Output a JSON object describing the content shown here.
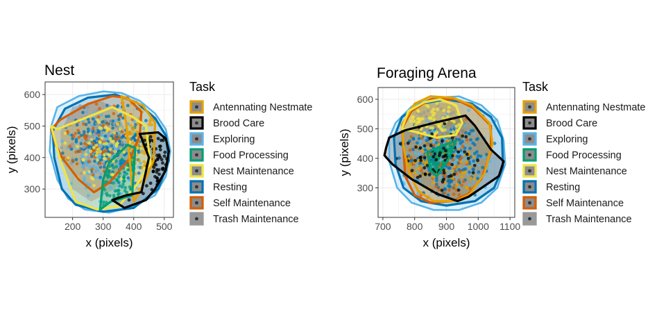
{
  "legend_title": "Task",
  "tasks": [
    {
      "name": "Antennating Nestmate",
      "color": "#E69F00"
    },
    {
      "name": "Brood Care",
      "color": "#000000"
    },
    {
      "name": "Exploring",
      "color": "#56B4E9"
    },
    {
      "name": "Food Processing",
      "color": "#009E73"
    },
    {
      "name": "Nest Maintenance",
      "color": "#F0E442"
    },
    {
      "name": "Resting",
      "color": "#0072B2"
    },
    {
      "name": "Self Maintenance",
      "color": "#D55E00"
    },
    {
      "name": "Trash Maintenance",
      "color": "#999999"
    }
  ],
  "chart_data": [
    {
      "type": "scatter",
      "title": "Nest",
      "xlabel": "x (pixels)",
      "ylabel": "y (pixels)",
      "xlim": [
        110,
        530
      ],
      "ylim": [
        210,
        640
      ],
      "xticks": [
        200,
        300,
        400,
        500
      ],
      "yticks": [
        300,
        400,
        500,
        600
      ],
      "grid": true,
      "legend_position": "right",
      "hulls": {
        "Exploring": [
          [
            130,
            500
          ],
          [
            150,
            560
          ],
          [
            220,
            595
          ],
          [
            300,
            610
          ],
          [
            360,
            605
          ],
          [
            420,
            580
          ],
          [
            470,
            540
          ],
          [
            505,
            490
          ],
          [
            520,
            420
          ],
          [
            505,
            340
          ],
          [
            470,
            280
          ],
          [
            400,
            245
          ],
          [
            320,
            225
          ],
          [
            240,
            235
          ],
          [
            185,
            270
          ],
          [
            150,
            330
          ],
          [
            125,
            420
          ]
        ],
        "Resting": [
          [
            135,
            485
          ],
          [
            175,
            555
          ],
          [
            250,
            590
          ],
          [
            340,
            600
          ],
          [
            410,
            575
          ],
          [
            470,
            525
          ],
          [
            505,
            470
          ],
          [
            515,
            390
          ],
          [
            480,
            300
          ],
          [
            400,
            240
          ],
          [
            300,
            228
          ],
          [
            210,
            250
          ],
          [
            165,
            300
          ],
          [
            140,
            400
          ]
        ],
        "Antennating Nestmate": [
          [
            360,
            595
          ],
          [
            430,
            565
          ],
          [
            470,
            510
          ],
          [
            465,
            390
          ],
          [
            420,
            290
          ],
          [
            400,
            260
          ],
          [
            375,
            510
          ]
        ],
        "Brood Care": [
          [
            420,
            475
          ],
          [
            480,
            480
          ],
          [
            505,
            460
          ],
          [
            515,
            420
          ],
          [
            505,
            360
          ],
          [
            470,
            300
          ],
          [
            440,
            265
          ],
          [
            370,
            240
          ],
          [
            330,
            265
          ],
          [
            375,
            280
          ],
          [
            425,
            290
          ],
          [
            450,
            400
          ]
        ],
        "Food Processing": [
          [
            290,
            235
          ],
          [
            325,
            260
          ],
          [
            395,
            280
          ],
          [
            405,
            430
          ],
          [
            380,
            440
          ],
          [
            320,
            385
          ],
          [
            300,
            330
          ]
        ],
        "Nest Maintenance": [
          [
            130,
            500
          ],
          [
            150,
            490
          ],
          [
            330,
            560
          ],
          [
            395,
            530
          ],
          [
            440,
            500
          ],
          [
            455,
            380
          ],
          [
            400,
            300
          ],
          [
            350,
            245
          ],
          [
            280,
            235
          ],
          [
            210,
            260
          ],
          [
            160,
            390
          ]
        ],
        "Self Maintenance": [
          [
            130,
            490
          ],
          [
            160,
            520
          ],
          [
            250,
            570
          ],
          [
            330,
            595
          ],
          [
            380,
            590
          ],
          [
            425,
            545
          ],
          [
            420,
            470
          ],
          [
            390,
            400
          ],
          [
            320,
            320
          ],
          [
            270,
            290
          ],
          [
            220,
            330
          ],
          [
            165,
            400
          ],
          [
            145,
            440
          ]
        ],
        "Trash Maintenance": [
          [
            160,
            480
          ],
          [
            200,
            560
          ],
          [
            290,
            580
          ],
          [
            340,
            560
          ],
          [
            380,
            470
          ],
          [
            390,
            400
          ],
          [
            340,
            300
          ],
          [
            260,
            260
          ],
          [
            200,
            300
          ],
          [
            165,
            390
          ]
        ]
      },
      "centers": {
        "Exploring": [
          300,
          420
        ],
        "Resting": [
          320,
          440
        ],
        "Antennating Nestmate": [
          420,
          430
        ],
        "Brood Care": [
          470,
          400
        ],
        "Food Processing": [
          360,
          330
        ],
        "Nest Maintenance": [
          300,
          420
        ],
        "Self Maintenance": [
          280,
          450
        ],
        "Trash Maintenance": [
          280,
          450
        ]
      },
      "spread": [
        110,
        105
      ]
    },
    {
      "type": "scatter",
      "title": "Foraging Arena",
      "xlabel": "x (pixels)",
      "ylabel": "y (pixels)",
      "xlim": [
        685,
        1115
      ],
      "ylim": [
        200,
        640
      ],
      "xticks": [
        700,
        800,
        900,
        1000,
        1100
      ],
      "yticks": [
        300,
        400,
        500,
        600
      ],
      "grid": true,
      "legend_position": "right",
      "hulls": {
        "Exploring": [
          [
            720,
            470
          ],
          [
            740,
            520
          ],
          [
            790,
            575
          ],
          [
            860,
            605
          ],
          [
            940,
            610
          ],
          [
            1010,
            580
          ],
          [
            1060,
            530
          ],
          [
            1080,
            460
          ],
          [
            1085,
            380
          ],
          [
            1060,
            300
          ],
          [
            1010,
            250
          ],
          [
            940,
            225
          ],
          [
            860,
            225
          ],
          [
            790,
            250
          ],
          [
            745,
            300
          ],
          [
            720,
            390
          ]
        ],
        "Resting": [
          [
            735,
            470
          ],
          [
            760,
            540
          ],
          [
            820,
            585
          ],
          [
            900,
            600
          ],
          [
            980,
            585
          ],
          [
            1040,
            540
          ],
          [
            1075,
            470
          ],
          [
            1078,
            370
          ],
          [
            1050,
            300
          ],
          [
            990,
            255
          ],
          [
            900,
            240
          ],
          [
            820,
            255
          ],
          [
            765,
            300
          ],
          [
            740,
            380
          ]
        ],
        "Brood Care": [
          [
            710,
            435
          ],
          [
            720,
            470
          ],
          [
            770,
            495
          ],
          [
            860,
            520
          ],
          [
            960,
            545
          ],
          [
            990,
            510
          ],
          [
            1040,
            430
          ],
          [
            1080,
            390
          ],
          [
            1065,
            340
          ],
          [
            970,
            270
          ],
          [
            935,
            255
          ],
          [
            870,
            280
          ],
          [
            790,
            330
          ],
          [
            730,
            380
          ],
          [
            705,
            410
          ]
        ],
        "Antennating Nestmate": [
          [
            760,
            515
          ],
          [
            800,
            585
          ],
          [
            850,
            610
          ],
          [
            920,
            605
          ],
          [
            980,
            580
          ],
          [
            1035,
            520
          ],
          [
            1045,
            450
          ],
          [
            1020,
            350
          ],
          [
            975,
            280
          ],
          [
            930,
            255
          ],
          [
            860,
            255
          ],
          [
            810,
            290
          ],
          [
            780,
            360
          ],
          [
            765,
            440
          ]
        ],
        "Self Maintenance": [
          [
            760,
            500
          ],
          [
            790,
            560
          ],
          [
            850,
            600
          ],
          [
            930,
            600
          ],
          [
            985,
            570
          ],
          [
            1040,
            510
          ],
          [
            1040,
            420
          ],
          [
            1010,
            330
          ],
          [
            970,
            280
          ],
          [
            920,
            255
          ],
          [
            850,
            250
          ],
          [
            800,
            275
          ],
          [
            770,
            340
          ],
          [
            765,
            430
          ]
        ],
        "Nest Maintenance": [
          [
            760,
            500
          ],
          [
            800,
            490
          ],
          [
            870,
            470
          ],
          [
            930,
            480
          ],
          [
            950,
            520
          ],
          [
            930,
            580
          ],
          [
            880,
            600
          ],
          [
            830,
            590
          ],
          [
            780,
            560
          ]
        ],
        "Food Processing": [
          [
            840,
            420
          ],
          [
            880,
            440
          ],
          [
            930,
            460
          ],
          [
            905,
            395
          ],
          [
            870,
            340
          ],
          [
            850,
            360
          ]
        ],
        "Trash Maintenance": [
          [
            790,
            560
          ],
          [
            850,
            590
          ],
          [
            920,
            585
          ],
          [
            960,
            520
          ],
          [
            950,
            460
          ],
          [
            880,
            450
          ],
          [
            830,
            470
          ],
          [
            795,
            510
          ]
        ]
      },
      "centers": {
        "Exploring": [
          900,
          410
        ],
        "Resting": [
          900,
          400
        ],
        "Antennating Nestmate": [
          890,
          380
        ],
        "Brood Care": [
          890,
          400
        ],
        "Food Processing": [
          880,
          380
        ],
        "Nest Maintenance": [
          860,
          510
        ],
        "Self Maintenance": [
          890,
          380
        ],
        "Trash Maintenance": [
          880,
          470
        ]
      },
      "spread": [
        115,
        110
      ]
    }
  ]
}
